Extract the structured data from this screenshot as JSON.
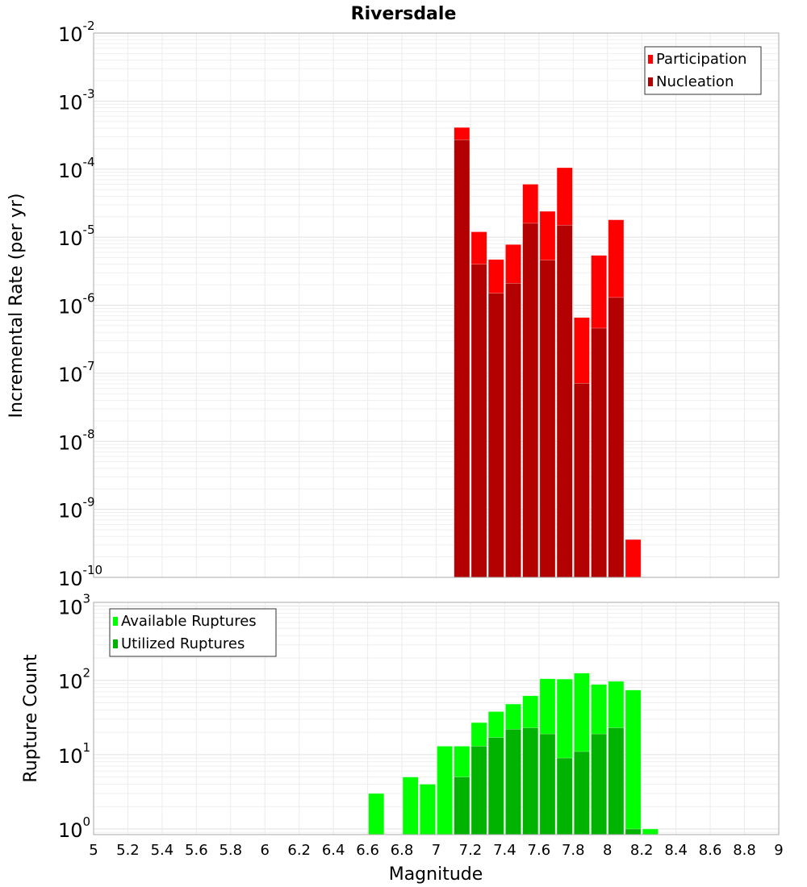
{
  "chart_data": [
    {
      "type": "bar",
      "title": "Riversdale",
      "xlabel": "Magnitude",
      "ylabel": "Incremental Rate (per yr)",
      "yscale": "log",
      "ylim": [
        1e-10,
        0.01
      ],
      "xlim": [
        5,
        9
      ],
      "grid": true,
      "legend_position": "top-right",
      "bar_width": 0.1,
      "x": [
        7.15,
        7.25,
        7.35,
        7.45,
        7.55,
        7.65,
        7.75,
        7.85,
        7.95,
        8.05,
        8.15
      ],
      "series": [
        {
          "name": "Participation",
          "color": "#ff0000",
          "values": [
            0.00041,
            1.2e-05,
            4.7e-06,
            7.8e-06,
            6e-05,
            2.4e-05,
            0.000105,
            6.6e-07,
            5.4e-06,
            1.8e-05,
            3.6e-10
          ]
        },
        {
          "name": "Nucleation",
          "color": "#b30000",
          "values": [
            0.00027,
            4e-06,
            1.5e-06,
            2.1e-06,
            1.6e-05,
            4.6e-06,
            1.5e-05,
            7.1e-08,
            4.6e-07,
            1.3e-06,
            null
          ]
        }
      ],
      "ytick_exponents": [
        -10,
        -9,
        -8,
        -7,
        -6,
        -5,
        -4,
        -3,
        -2
      ]
    },
    {
      "type": "bar",
      "xlabel": "Magnitude",
      "ylabel": "Rupture Count",
      "yscale": "log",
      "ylim": [
        0.84,
        1120
      ],
      "xlim": [
        5,
        9
      ],
      "grid": true,
      "legend_position": "top-left",
      "bar_width": 0.1,
      "x": [
        6.65,
        6.85,
        6.95,
        7.05,
        7.15,
        7.25,
        7.35,
        7.45,
        7.55,
        7.65,
        7.75,
        7.85,
        7.95,
        8.05,
        8.15,
        8.25
      ],
      "series": [
        {
          "name": "Available Ruptures",
          "color": "#00ff00",
          "values": [
            3,
            5,
            4,
            13,
            13,
            27,
            38,
            48,
            62,
            105,
            104,
            125,
            88,
            97,
            74,
            1
          ]
        },
        {
          "name": "Utilized Ruptures",
          "color": "#00b300",
          "values": [
            null,
            null,
            null,
            null,
            5,
            13,
            17,
            22,
            23,
            19,
            9,
            11,
            19,
            23,
            1,
            null
          ]
        }
      ],
      "ytick_exponents": [
        0,
        1,
        2,
        3
      ],
      "xtick_labels": [
        "5",
        "5.2",
        "5.4",
        "5.6",
        "5.8",
        "6",
        "6.2",
        "6.4",
        "6.6",
        "6.8",
        "7",
        "7.2",
        "7.4",
        "7.6",
        "7.8",
        "8",
        "8.2",
        "8.4",
        "8.6",
        "8.8",
        "9"
      ]
    }
  ]
}
